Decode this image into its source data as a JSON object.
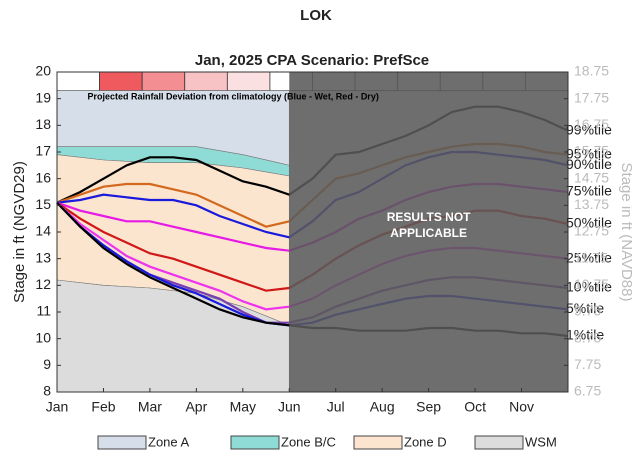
{
  "chart_data": {
    "type": "line",
    "title": "LOK",
    "subtitle": "Jan, 2025  CPA Scenario: PrefSce",
    "ylabel": "Stage in ft (NGVD29)",
    "y2label": "Stage in ft (NAVD88)",
    "rainfall_title": "Projected Rainfall Deviation from climatology (Blue - Wet, Red - Dry)",
    "rainfall_colors": [
      "#ffffff",
      "#ef5a5f",
      "#f38f92",
      "#f7c3c5",
      "#fbe0e1",
      "#ffffff",
      "#ffffff",
      "#ffffff",
      "#ffffff",
      "#ffffff",
      "#ffffff",
      "#ffffff"
    ],
    "na_text": [
      "RESULTS NOT",
      "APPLICABLE"
    ],
    "na_start": 5,
    "xlim": [
      0,
      11
    ],
    "xticks": [
      {
        "value": 0,
        "label": "Jan"
      },
      {
        "value": 1,
        "label": "Feb"
      },
      {
        "value": 2,
        "label": "Mar"
      },
      {
        "value": 3,
        "label": "Apr"
      },
      {
        "value": 4,
        "label": "May"
      },
      {
        "value": 5,
        "label": "Jun"
      },
      {
        "value": 6,
        "label": "Jul"
      },
      {
        "value": 7,
        "label": "Aug"
      },
      {
        "value": 8,
        "label": "Sep"
      },
      {
        "value": 9,
        "label": "Oct"
      },
      {
        "value": 10,
        "label": "Nov"
      }
    ],
    "ylim": [
      8,
      20
    ],
    "yticks": [
      8,
      9,
      10,
      11,
      12,
      13,
      14,
      15,
      16,
      17,
      18,
      19,
      20
    ],
    "y2lim": [
      6.75,
      18.75
    ],
    "y2ticks": [
      6.75,
      7.75,
      8.75,
      9.75,
      10.75,
      11.75,
      12.75,
      13.75,
      14.75,
      15.75,
      16.75,
      17.75,
      18.75
    ],
    "zone_x": [
      0,
      1,
      2,
      3,
      4,
      5
    ],
    "zones": [
      {
        "name": "Zone A",
        "color": "#d6deea",
        "upper": [
          19.3,
          19.3,
          19.3,
          19.3,
          19.3,
          19.3
        ],
        "lower": [
          17.2,
          17.2,
          17.2,
          17.2,
          16.9,
          16.5
        ]
      },
      {
        "name": "Zone B/C",
        "color": "#8fdcd6",
        "upper": [
          17.2,
          17.2,
          17.2,
          17.2,
          16.9,
          16.5
        ],
        "lower": [
          16.9,
          16.7,
          16.6,
          16.6,
          16.4,
          16.1
        ]
      },
      {
        "name": "Zone D",
        "color": "#fce5cf",
        "upper": [
          16.9,
          16.7,
          16.6,
          16.6,
          16.4,
          16.1
        ],
        "lower": [
          12.2,
          12.0,
          11.9,
          11.7,
          11.2,
          10.5
        ]
      },
      {
        "name": "WSM",
        "color": "#dcdcdc",
        "upper": [
          12.2,
          12.0,
          11.9,
          11.7,
          11.2,
          10.5
        ],
        "lower": [
          8,
          8,
          8,
          8,
          8,
          8
        ]
      }
    ],
    "x": [
      0,
      0.5,
      1,
      1.5,
      2,
      2.5,
      3,
      3.5,
      4,
      4.5,
      5,
      5.5,
      6,
      6.5,
      7,
      7.5,
      8,
      8.5,
      9,
      9.5,
      10,
      10.5,
      11
    ],
    "series": [
      {
        "name": "99%tile",
        "color": "#000000",
        "values": [
          15.1,
          15.5,
          16.0,
          16.5,
          16.8,
          16.8,
          16.7,
          16.3,
          15.9,
          15.7,
          15.4,
          16.0,
          16.9,
          17.0,
          17.3,
          17.6,
          18.0,
          18.5,
          18.7,
          18.7,
          18.5,
          18.2,
          17.8
        ]
      },
      {
        "name": "95%tile",
        "color": "#d2691e",
        "values": [
          15.1,
          15.4,
          15.7,
          15.8,
          15.8,
          15.6,
          15.4,
          15.0,
          14.6,
          14.2,
          14.4,
          15.2,
          16.0,
          16.2,
          16.5,
          16.8,
          17.0,
          17.2,
          17.3,
          17.3,
          17.2,
          17.0,
          16.9
        ]
      },
      {
        "name": "90%tile",
        "color": "#1a1adc",
        "values": [
          15.1,
          15.2,
          15.4,
          15.3,
          15.2,
          15.2,
          15.0,
          14.6,
          14.3,
          14.0,
          13.8,
          14.4,
          15.2,
          15.5,
          16.0,
          16.5,
          16.8,
          17.0,
          17.0,
          16.9,
          16.8,
          16.7,
          16.5
        ]
      },
      {
        "name": "75%tile",
        "color": "#e619e6",
        "values": [
          15.1,
          14.8,
          14.6,
          14.4,
          14.4,
          14.2,
          14.0,
          13.8,
          13.6,
          13.4,
          13.3,
          13.6,
          14.0,
          14.5,
          14.8,
          15.2,
          15.5,
          15.7,
          15.8,
          15.8,
          15.7,
          15.6,
          15.5
        ]
      },
      {
        "name": "50%tile",
        "color": "#d01818",
        "values": [
          15.1,
          14.5,
          14.0,
          13.6,
          13.2,
          13.0,
          12.7,
          12.4,
          12.1,
          11.8,
          11.9,
          12.4,
          13.0,
          13.5,
          13.9,
          14.2,
          14.5,
          14.6,
          14.8,
          14.8,
          14.6,
          14.5,
          14.3
        ]
      },
      {
        "name": "25%tile",
        "color": "#ee33ee",
        "values": [
          15.1,
          14.3,
          13.7,
          13.1,
          12.7,
          12.4,
          12.1,
          11.8,
          11.4,
          11.1,
          11.2,
          11.5,
          12.0,
          12.4,
          12.8,
          13.1,
          13.3,
          13.4,
          13.4,
          13.3,
          13.2,
          13.1,
          13.0
        ]
      },
      {
        "name": "10%tile",
        "color": "#7a3fb0",
        "values": [
          15.1,
          14.2,
          13.5,
          12.9,
          12.4,
          12.1,
          11.8,
          11.5,
          11.0,
          10.6,
          10.6,
          10.8,
          11.2,
          11.5,
          11.8,
          12.0,
          12.2,
          12.3,
          12.3,
          12.2,
          12.1,
          12.0,
          11.9
        ]
      },
      {
        "name": "5%tile",
        "color": "#1a1adc",
        "values": [
          15.1,
          14.2,
          13.5,
          12.9,
          12.4,
          12.0,
          11.7,
          11.3,
          10.9,
          10.6,
          10.5,
          10.6,
          10.9,
          11.1,
          11.3,
          11.5,
          11.6,
          11.6,
          11.5,
          11.4,
          11.3,
          11.2,
          11.1
        ]
      },
      {
        "name": "1%tile",
        "color": "#000000",
        "values": [
          15.1,
          14.2,
          13.4,
          12.8,
          12.3,
          11.9,
          11.5,
          11.1,
          10.8,
          10.6,
          10.5,
          10.4,
          10.4,
          10.3,
          10.3,
          10.3,
          10.4,
          10.4,
          10.3,
          10.3,
          10.2,
          10.2,
          10.1
        ]
      }
    ]
  }
}
